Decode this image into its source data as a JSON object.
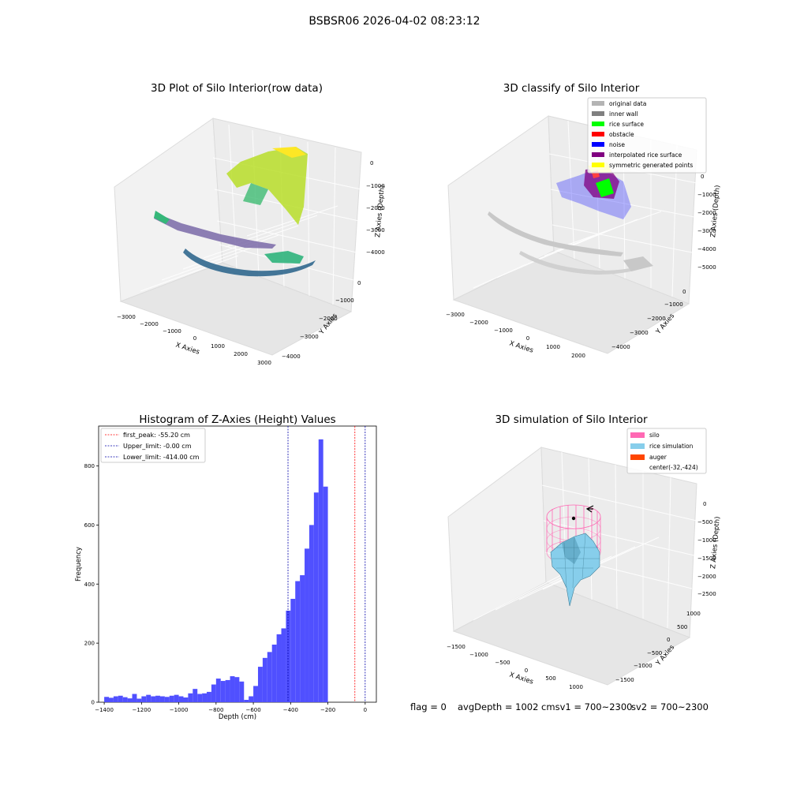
{
  "suptitle": "BSBSR06 2026-04-02 08:23:12",
  "status": {
    "flag": "flag = 0",
    "avg": "avgDepth = 1002 cmsv1 = 700~2300",
    "sv2": "sv2 = 700~2300"
  },
  "colors": {
    "hist_bar": "#5050ff",
    "first_peak": "#ff0000",
    "upper": "#0000aa",
    "lower": "#0000aa",
    "original": "#b4b4b4",
    "inner_wall": "#808080",
    "rice_surface": "#00ff00",
    "obstacle": "#ff0000",
    "noise": "#0000ff",
    "interpolated": "#800080",
    "symmetric": "#ffff00",
    "silo": "#ff69b4",
    "rice_sim": "#87ceeb",
    "auger": "#ff4500"
  },
  "chart_data": [
    {
      "type": "scatter",
      "dims": 3,
      "title": "3D Plot of Silo Interior(row data)",
      "xlabel": "X Axies",
      "ylabel": "Y Axies",
      "zlabel": "Z Axies (Depth)",
      "xticks": [
        "−3000",
        "−2000",
        "−1000",
        "0",
        "1000",
        "2000",
        "3000"
      ],
      "yticks": [
        "0",
        "−1000",
        "−2000",
        "−3000",
        "−4000"
      ],
      "zticks": [
        "0",
        "−1000",
        "−2000",
        "−3000",
        "−4000"
      ],
      "colormap": "viridis",
      "grid": true
    },
    {
      "type": "scatter",
      "dims": 3,
      "title": "3D classify of Silo Interior",
      "xlabel": "X Axies",
      "ylabel": "Y Axies",
      "zlabel": "Z Axies (Depth)",
      "xticks": [
        "−3000",
        "−2000",
        "−1000",
        "0",
        "1000",
        "2000"
      ],
      "yticks": [
        "0",
        "−1000",
        "−2000",
        "−3000",
        "−4000"
      ],
      "zticks": [
        "0",
        "−1000",
        "−2000",
        "−3000",
        "−4000",
        "−5000"
      ],
      "legend": [
        "original data",
        "inner wall",
        "rice surface",
        "obstacle",
        "noise",
        "interpolated rice surface",
        "symmetric generated points"
      ],
      "legend_position": "upper-right",
      "grid": true
    },
    {
      "type": "bar",
      "title": "Histogram of Z-Axies (Height) Values",
      "xlabel": "Depth (cm)",
      "ylabel": "Frequency",
      "xlim": [
        -1430,
        60
      ],
      "ylim": [
        0,
        935
      ],
      "bin_start": -1400,
      "bin_width": 25,
      "values": [
        18,
        15,
        20,
        22,
        17,
        13,
        28,
        12,
        20,
        25,
        20,
        22,
        20,
        18,
        22,
        25,
        20,
        16,
        30,
        45,
        28,
        30,
        35,
        60,
        80,
        72,
        75,
        88,
        85,
        70,
        8,
        20,
        55,
        120,
        150,
        170,
        195,
        230,
        250,
        310,
        350,
        410,
        430,
        520,
        600,
        710,
        890,
        730
      ],
      "xticks": [
        -1400,
        -1200,
        -1000,
        -800,
        -600,
        -400,
        -200,
        0
      ],
      "xtick_labels": [
        "−1400",
        "−1200",
        "−1000",
        "−800",
        "−600",
        "−400",
        "−200",
        "0"
      ],
      "yticks": [
        0,
        200,
        400,
        600,
        800
      ],
      "yticks_labels": [
        "0",
        "200",
        "400",
        "600",
        "800"
      ],
      "lines": [
        {
          "label": "first_peak: -55.20 cm",
          "x": -55.2,
          "color": "#ff0000"
        },
        {
          "label": "Upper_limit: -0.00 cm",
          "x": 0,
          "color": "#0000aa"
        },
        {
          "label": "Lower_limit: -414.00 cm",
          "x": -414,
          "color": "#0000aa"
        }
      ],
      "legend_position": "upper-left"
    },
    {
      "type": "surface",
      "dims": 3,
      "title": "3D simulation of Silo Interior",
      "xlabel": "X Axies",
      "ylabel": "Y Axies",
      "zlabel": "Z Axies (Depth)",
      "xticks": [
        "−1500",
        "−1000",
        "−500",
        "0",
        "500",
        "1000"
      ],
      "yticks": [
        "1000",
        "500",
        "0",
        "−500",
        "−1000",
        "−1500"
      ],
      "zticks": [
        "0",
        "−500",
        "−1000",
        "−1500",
        "−2000",
        "−2500"
      ],
      "legend": [
        "silo",
        "rice simulation",
        "auger",
        "center(-32,-424)"
      ],
      "legend_position": "upper-right",
      "grid": true
    }
  ]
}
